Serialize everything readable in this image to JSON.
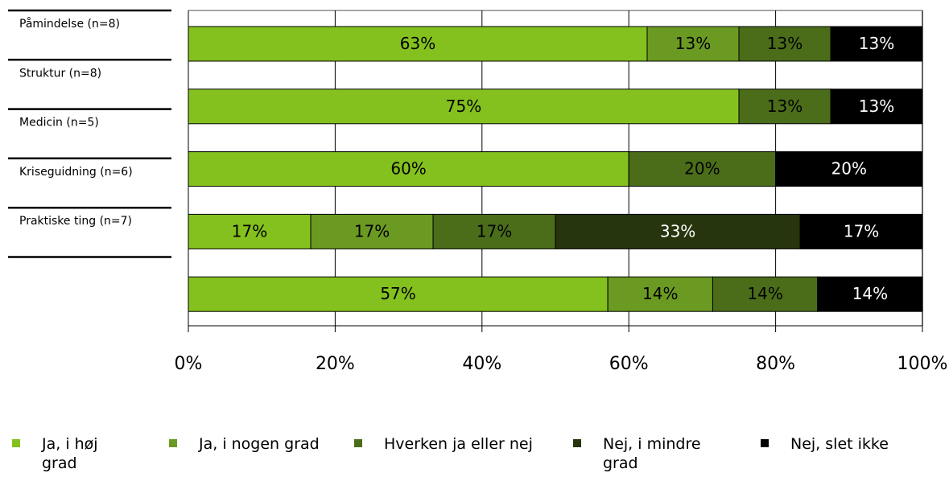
{
  "chart_data": {
    "type": "stacked_barh",
    "categories": [
      "Påmindelse (n=8)",
      "Struktur (n=8)",
      "Medicin (n=5)",
      "Kriseguidning (n=6)",
      "Praktiske ting (n=7)"
    ],
    "series": [
      {
        "name": "Ja, i høj grad",
        "color": "#84c11f",
        "values": [
          62.5,
          75,
          60,
          16.67,
          57.14
        ],
        "value_labels": [
          "63%",
          "75%",
          "60%",
          "17%",
          "57%"
        ]
      },
      {
        "name": "Ja, i nogen grad",
        "color": "#6b9a22",
        "values": [
          12.5,
          null,
          null,
          16.67,
          14.29
        ],
        "value_labels": [
          "13%",
          null,
          null,
          "17%",
          "14%"
        ]
      },
      {
        "name": "Hverken ja eller nej",
        "color": "#4b6d1a",
        "values": [
          12.5,
          12.5,
          20,
          16.67,
          14.29
        ],
        "value_labels": [
          "13%",
          "13%",
          "20%",
          "17%",
          "14%"
        ]
      },
      {
        "name": "Nej, i mindre grad",
        "color": "#26350d",
        "values": [
          null,
          null,
          null,
          33.33,
          null
        ],
        "value_labels": [
          null,
          null,
          null,
          "33%",
          null
        ]
      },
      {
        "name": "Nej, slet ikke",
        "color": "#000000",
        "values": [
          12.5,
          12.5,
          20,
          16.67,
          14.29
        ],
        "value_labels": [
          "13%",
          "13%",
          "20%",
          "17%",
          "14%"
        ]
      }
    ],
    "xlim": [
      0,
      100
    ],
    "xticks": [
      {
        "value": 0,
        "label": "0%"
      },
      {
        "value": 20,
        "label": "20%"
      },
      {
        "value": 40,
        "label": "40%"
      },
      {
        "value": 60,
        "label": "60%"
      },
      {
        "value": 80,
        "label": "80%"
      },
      {
        "value": 100,
        "label": "100%"
      }
    ],
    "grid": true,
    "legend": "bottom"
  }
}
